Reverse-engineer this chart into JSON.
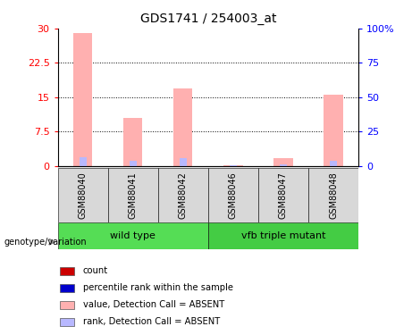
{
  "title": "GDS1741 / 254003_at",
  "samples": [
    "GSM88040",
    "GSM88041",
    "GSM88042",
    "GSM88046",
    "GSM88047",
    "GSM88048"
  ],
  "groups": [
    {
      "label": "wild type",
      "indices": [
        0,
        1,
        2
      ],
      "color": "#55dd55"
    },
    {
      "label": "vfb triple mutant",
      "indices": [
        3,
        4,
        5
      ],
      "color": "#44cc44"
    }
  ],
  "value_absent": [
    29.0,
    10.5,
    17.0,
    0.15,
    1.6,
    15.5
  ],
  "rank_absent": [
    6.5,
    3.5,
    5.5,
    0.2,
    1.2,
    3.8
  ],
  "left_yticks": [
    0,
    7.5,
    15,
    22.5,
    30
  ],
  "left_ylabels": [
    "0",
    "7.5",
    "15",
    "22.5",
    "30"
  ],
  "right_yticks": [
    0,
    25,
    50,
    75,
    100
  ],
  "right_ylabels": [
    "0",
    "25",
    "50",
    "75",
    "100%"
  ],
  "ylim_left": [
    0,
    30
  ],
  "ylim_right": [
    0,
    100
  ],
  "color_value_absent": "#ffb0b0",
  "color_rank_absent": "#b8b8ff",
  "color_count": "#cc0000",
  "color_rank": "#0000cc",
  "legend_labels": [
    "count",
    "percentile rank within the sample",
    "value, Detection Call = ABSENT",
    "rank, Detection Call = ABSENT"
  ],
  "xlabel_group": "genotype/variation",
  "bg_sample_color": "#d8d8d8"
}
